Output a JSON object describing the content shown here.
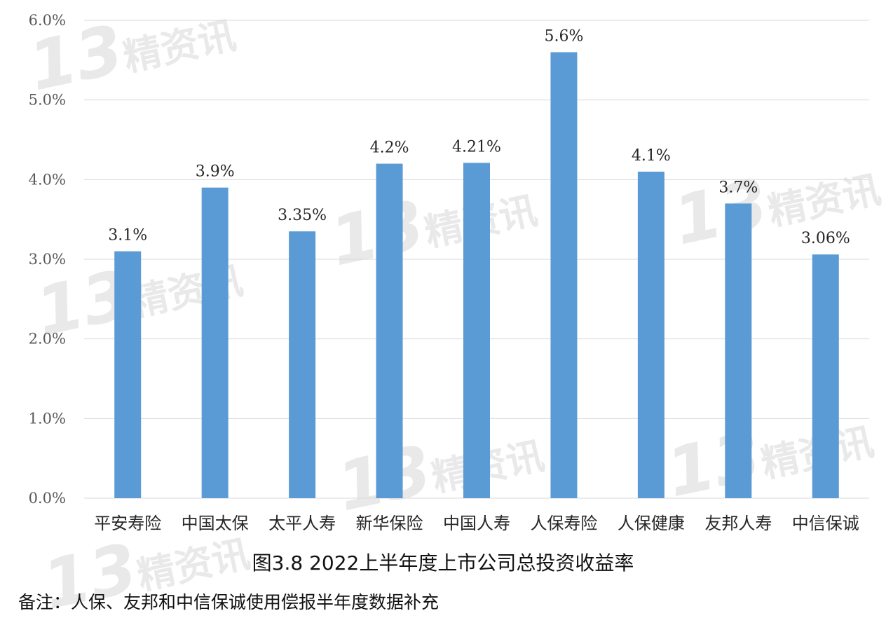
{
  "chart_data": {
    "type": "bar",
    "title": "",
    "categories": [
      "平安寿险",
      "中国太保",
      "太平人寿",
      "新华保险",
      "中国人寿",
      "人保寿险",
      "人保健康",
      "友邦人寿",
      "中信保诚"
    ],
    "values": [
      3.1,
      3.9,
      3.35,
      4.2,
      4.21,
      5.6,
      4.1,
      3.7,
      3.06
    ],
    "data_labels": [
      "3.1%",
      "3.9%",
      "3.35%",
      "4.2%",
      "4.21%",
      "5.6%",
      "4.1%",
      "3.7%",
      "3.06%"
    ],
    "y_ticks": [
      "0.0%",
      "1.0%",
      "2.0%",
      "3.0%",
      "4.0%",
      "5.0%",
      "6.0%"
    ],
    "ylim": [
      0,
      6
    ],
    "xlabel": "",
    "ylabel": "",
    "grid": true,
    "bar_color": "#5b9bd5",
    "grid_color": "#d9d9d9"
  },
  "caption": "图3.8  2022上半年度上市公司总投资收益率",
  "note": "备注：人保、友邦和中信保诚使用偿报半年度数据补充",
  "watermark": {
    "number": "13",
    "text": "精资讯"
  }
}
